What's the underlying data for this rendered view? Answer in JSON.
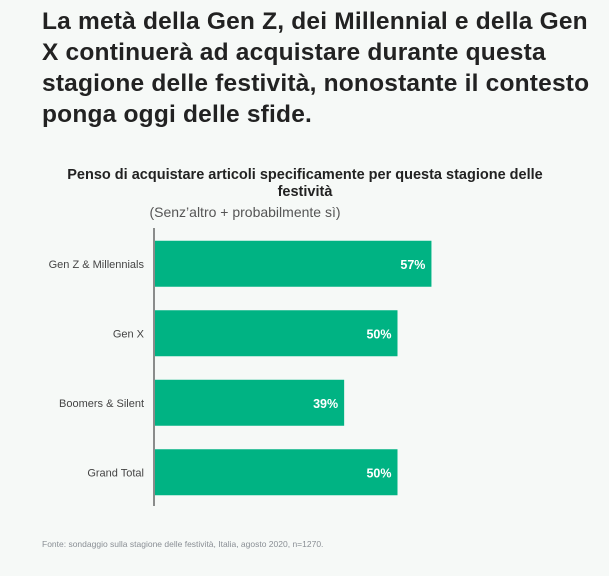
{
  "headline": "La metà della Gen Z, dei Millennial e della Gen X continuerà ad acquistare durante questa stagione delle festività, nonostante il contesto ponga oggi delle sfide.",
  "source": "Fonte: sondaggio sulla stagione delle festività, Italia, agosto 2020, n=1270.",
  "colors": {
    "bar": "#00b383",
    "axis": "#1f1f1f",
    "bar_label": "#ffffff"
  },
  "chart_data": {
    "type": "bar",
    "orientation": "horizontal",
    "title": "Penso di acquistare articoli specificamente per questa stagione delle festività",
    "subtitle": "(Senz’altro + probabilmente sì)",
    "categories": [
      "Gen Z & Millennials",
      "Gen X",
      "Boomers & Silent",
      "Grand Total"
    ],
    "values": [
      57,
      50,
      39,
      50
    ],
    "value_labels": [
      "57%",
      "50%",
      "39%",
      "50%"
    ],
    "unit": "%",
    "xlim": [
      0,
      100
    ],
    "grid": false,
    "legend": "none"
  }
}
